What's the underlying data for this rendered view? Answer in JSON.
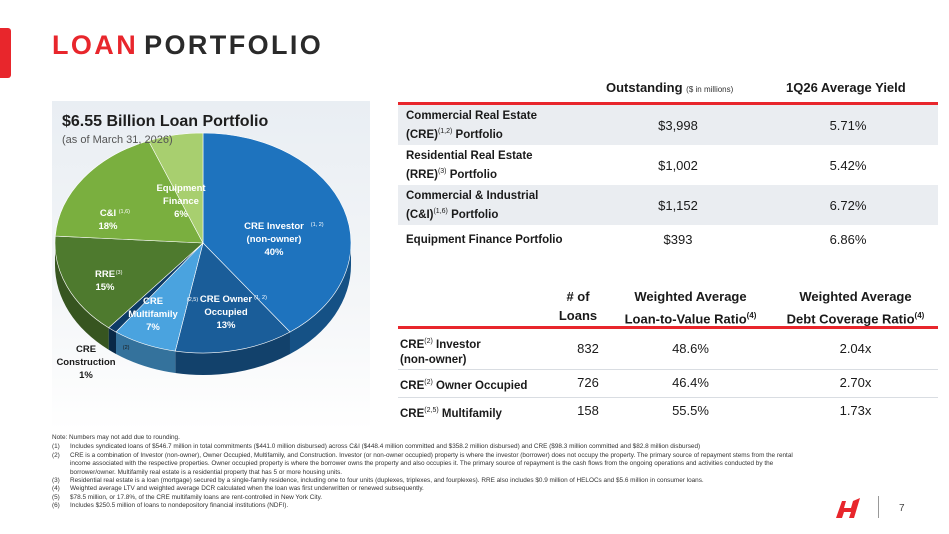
{
  "header": {
    "title_part1": "LOAN",
    "title_part2": "PORTFOLIO"
  },
  "chart": {
    "title": "$6.55 Billion Loan Portfolio",
    "subtitle": "(as of March 31, 2026)"
  },
  "chart_data": {
    "type": "pie",
    "title": "$6.55 Billion Loan Portfolio",
    "subtitle": "(as of March 31, 2026)",
    "slices": [
      {
        "name": "CRE Investor (non-owner)",
        "value": 40,
        "pct_label": "40%",
        "label_lines": [
          "CRE Investor",
          "(non-owner)"
        ],
        "note": "(1, 2)",
        "color": "#1e73be"
      },
      {
        "name": "CRE Owner Occupied",
        "value": 13,
        "pct_label": "13%",
        "label_lines": [
          "CRE Owner",
          "Occupied"
        ],
        "note": "(1, 2)",
        "color": "#1a5d99"
      },
      {
        "name": "CRE Multifamily",
        "value": 7,
        "pct_label": "7%",
        "label_lines": [
          "CRE",
          "Multifamily"
        ],
        "note": "(2,5)",
        "color": "#4aa3df"
      },
      {
        "name": "CRE Construction",
        "value": 1,
        "pct_label": "1%",
        "label_lines": [
          "CRE",
          "Construction"
        ],
        "note": "(2)",
        "color": "#0d3b66"
      },
      {
        "name": "RRE",
        "value": 15,
        "pct_label": "15%",
        "label_lines": [
          "RRE"
        ],
        "note": "(3)",
        "color": "#4e7a2e"
      },
      {
        "name": "C&I",
        "value": 18,
        "pct_label": "18%",
        "label_lines": [
          "C&I"
        ],
        "note": "(1,6)",
        "color": "#7aaf3f"
      },
      {
        "name": "Equipment Finance",
        "value": 6,
        "pct_label": "6%",
        "label_lines": [
          "Equipment",
          "Finance"
        ],
        "note": "",
        "color": "#a8cf6f"
      }
    ]
  },
  "table1": {
    "col1_header": "Outstanding",
    "col1_unit": "($ in millions)",
    "col2_header": "1Q26 Average Yield",
    "rows": [
      {
        "line1": "Commercial Real Estate",
        "line2_pre": "(CRE)",
        "sup": "(1,2)",
        "line2_post": " Portfolio",
        "outstanding": "$3,998",
        "yield": "5.71%"
      },
      {
        "line1": "Residential Real Estate",
        "line2_pre": "(RRE)",
        "sup": "(3)",
        "line2_post": " Portfolio",
        "outstanding": "$1,002",
        "yield": "5.42%"
      },
      {
        "line1": "Commercial & Industrial",
        "line2_pre": "(C&I)",
        "sup": "(1,6)",
        "line2_post": " Portfolio",
        "outstanding": "$1,152",
        "yield": "6.72%"
      },
      {
        "line1": "Equipment Finance Portfolio",
        "outstanding": "$393",
        "yield": "6.86%"
      }
    ]
  },
  "table2": {
    "h_loans_1": "# of",
    "h_loans_2": "Loans",
    "h_ltv_1": "Weighted Average",
    "h_ltv_2": "Loan-to-Value Ratio",
    "h_ltv_sup": "(4)",
    "h_dcr_1": "Weighted Average",
    "h_dcr_2": "Debt Coverage Ratio",
    "h_dcr_sup": "(4)",
    "rows": [
      {
        "pre": "CRE",
        "sup": "(2)",
        "post": " Investor",
        "line2": "(non-owner)",
        "loans": "832",
        "ltv": "48.6%",
        "dcr": "2.04x"
      },
      {
        "pre": "CRE",
        "sup": "(2)",
        "post": " Owner Occupied",
        "loans": "726",
        "ltv": "46.4%",
        "dcr": "2.70x"
      },
      {
        "pre": "CRE",
        "sup": "(2,5)",
        "post": " Multifamily",
        "loans": "158",
        "ltv": "55.5%",
        "dcr": "1.73x"
      }
    ]
  },
  "notes": {
    "head": "Note: Numbers may not add due to rounding.",
    "items": [
      {
        "num": "(1)",
        "text": "Includes syndicated loans of $546.7 million in total commitments ($441.0 million disbursed) across C&I ($448.4 million committed and $358.2 million disbursed) and CRE ($98.3 million committed and $82.8 million disbursed)"
      },
      {
        "num": "(2)",
        "text": "CRE is a combination of Investor (non-owner), Owner Occupied, Multifamily, and Construction. Investor (or non-owner occupied) property is where the investor (borrower) does not occupy the property. The primary source of repayment stems from the rental income associated with the respective properties. Owner occupied property is where the borrower owns the property and also occupies it. The primary source of repayment is the cash flows from the ongoing operations and activities conducted by the borrower/owner. Multifamily real estate is a residential property that has 5 or more housing units."
      },
      {
        "num": "(3)",
        "text": "Residential real estate is a loan (mortgage) secured by a single-family residence, including one to four units (duplexes, triplexes, and fourplexes). RRE also includes $0.9 million of HELOCs and $5.6 million in consumer loans."
      },
      {
        "num": "(4)",
        "text": "Weighted average LTV and weighted average DCR calculated when the loan was first underwritten or renewed subsequently."
      },
      {
        "num": "(5)",
        "text": "$78.5 million, or 17.8%, of the CRE multifamily loans are rent-controlled in New York City."
      },
      {
        "num": "(6)",
        "text": "Includes $250.5 million of loans to nondepository financial institutions (NDFI)."
      }
    ]
  },
  "footer": {
    "page_number": "7"
  },
  "colors": {
    "accent": "#e8262c"
  }
}
